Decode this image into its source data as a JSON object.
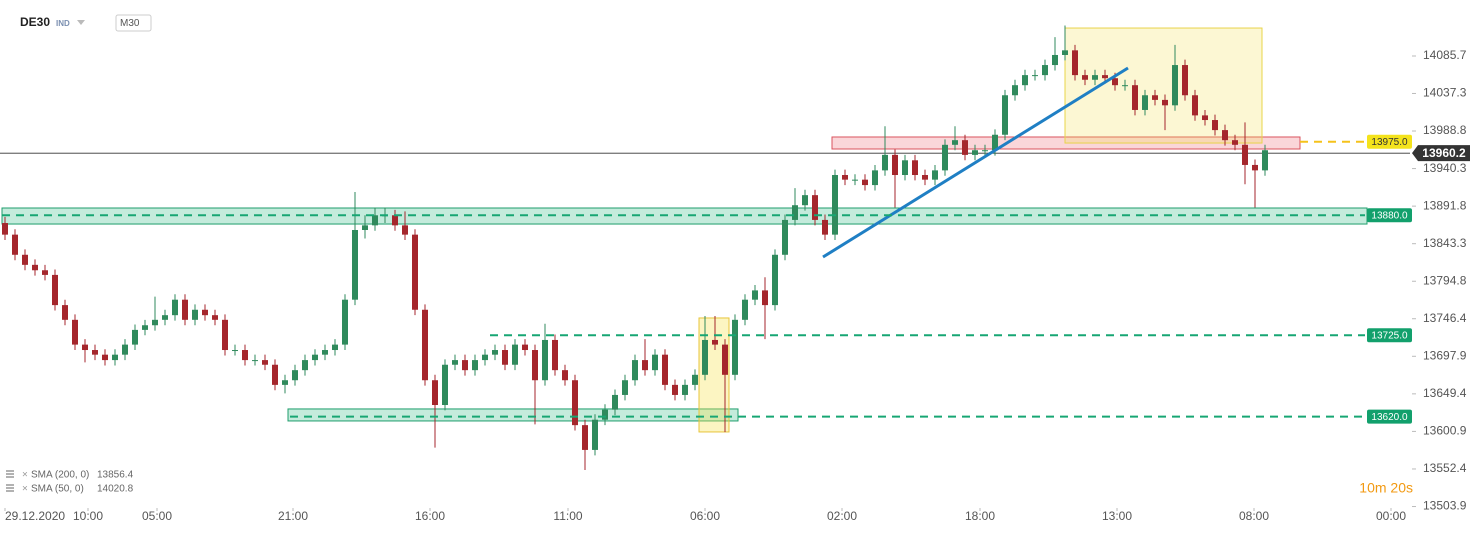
{
  "chart_data": {
    "type": "candlestick",
    "symbol": "DE30",
    "symbol_type": "IND",
    "timeframe": "M30",
    "countdown": "10m 20s",
    "colors": {
      "up": "#2f8a5c",
      "down": "#a5262c"
    },
    "open": [
      13870,
      13855,
      13829,
      13816,
      13809,
      13803,
      13764,
      13745,
      13713,
      13706,
      13700,
      13693,
      13700,
      13713,
      13732,
      13738,
      13745,
      13751,
      13771,
      13745,
      13758,
      13751,
      13745,
      13706,
      13706,
      13693,
      13693,
      13687,
      13661,
      13667,
      13680,
      13693,
      13700,
      13706,
      13713,
      13771,
      13861,
      13867,
      13880,
      13880,
      13867,
      13855,
      13758,
      13667,
      13635,
      13687,
      13693,
      13680,
      13693,
      13700,
      13706,
      13687,
      13713,
      13706,
      13667,
      13719,
      13680,
      13667,
      13609,
      13577,
      13616,
      13629,
      13648,
      13667,
      13693,
      13680,
      13700,
      13661,
      13648,
      13661,
      13674,
      13719,
      13713,
      13674,
      13745,
      13771,
      13783,
      13764,
      13829,
      13874,
      13893,
      13906,
      13874,
      13855,
      13932,
      13926,
      13926,
      13919,
      13938,
      13958,
      13932,
      13951,
      13932,
      13926,
      13938,
      13971,
      13977,
      13958,
      13964,
      13964,
      13984,
      14035,
      14048,
      14061,
      14061,
      14074,
      14087,
      14093,
      14061,
      14055,
      14061,
      14057,
      14048,
      14048,
      14016,
      14035,
      14029,
      14022,
      14074,
      14035,
      14009,
      14003,
      13990,
      13977,
      13971,
      13945,
      13938
    ],
    "high": [
      13878,
      13862,
      13836,
      13823,
      13816,
      13810,
      13771,
      13752,
      13720,
      13713,
      13707,
      13707,
      13720,
      13739,
      13745,
      13775,
      13758,
      13778,
      13778,
      13765,
      13765,
      13758,
      13752,
      13713,
      13713,
      13700,
      13700,
      13694,
      13674,
      13687,
      13700,
      13707,
      13713,
      13720,
      13778,
      13910,
      13880,
      13890,
      13890,
      13887,
      13885,
      13862,
      13765,
      13674,
      13694,
      13700,
      13700,
      13700,
      13707,
      13713,
      13713,
      13720,
      13720,
      13713,
      13740,
      13726,
      13687,
      13674,
      13616,
      13623,
      13636,
      13655,
      13674,
      13700,
      13720,
      13707,
      13707,
      13668,
      13668,
      13681,
      13750,
      13750,
      13720,
      13752,
      13778,
      13790,
      13800,
      13836,
      13881,
      13915,
      13913,
      13913,
      13881,
      13939,
      13939,
      13933,
      13933,
      13945,
      13995,
      13965,
      13958,
      13958,
      13939,
      13945,
      13978,
      13995,
      13984,
      13971,
      13971,
      13991,
      14042,
      14055,
      14068,
      14068,
      14081,
      14110,
      14125,
      14100,
      14068,
      14068,
      14068,
      14064,
      14055,
      14055,
      14042,
      14042,
      14036,
      14100,
      14081,
      14042,
      14016,
      14010,
      13997,
      13984,
      14000,
      13952,
      13971
    ],
    "low": [
      13848,
      13822,
      13809,
      13802,
      13796,
      13757,
      13738,
      13706,
      13690,
      13693,
      13686,
      13686,
      13693,
      13706,
      13725,
      13731,
      13738,
      13744,
      13738,
      13738,
      13744,
      13738,
      13699,
      13699,
      13686,
      13686,
      13680,
      13654,
      13650,
      13660,
      13673,
      13686,
      13693,
      13699,
      13706,
      13764,
      13850,
      13860,
      13870,
      13860,
      13848,
      13751,
      13660,
      13580,
      13628,
      13680,
      13673,
      13673,
      13686,
      13693,
      13680,
      13680,
      13699,
      13610,
      13660,
      13673,
      13660,
      13602,
      13551,
      13570,
      13609,
      13622,
      13641,
      13660,
      13673,
      13673,
      13654,
      13641,
      13641,
      13654,
      13667,
      13706,
      13600,
      13667,
      13738,
      13764,
      13720,
      13757,
      13822,
      13867,
      13886,
      13867,
      13848,
      13848,
      13919,
      13919,
      13912,
      13912,
      13931,
      13890,
      13925,
      13925,
      13919,
      13919,
      13931,
      13964,
      13951,
      13951,
      13957,
      13957,
      13977,
      14028,
      14041,
      14054,
      14054,
      14067,
      14080,
      14054,
      14048,
      14048,
      14050,
      14041,
      14041,
      14009,
      14009,
      14022,
      13990,
      14015,
      14028,
      14002,
      13996,
      13983,
      13970,
      13964,
      13920,
      13890,
      13931
    ],
    "close": [
      13855,
      13829,
      13816,
      13809,
      13803,
      13764,
      13745,
      13713,
      13706,
      13700,
      13693,
      13700,
      13713,
      13732,
      13738,
      13745,
      13751,
      13771,
      13745,
      13758,
      13751,
      13745,
      13706,
      13706,
      13693,
      13693,
      13687,
      13661,
      13667,
      13680,
      13693,
      13700,
      13706,
      13713,
      13771,
      13861,
      13867,
      13880,
      13880,
      13867,
      13855,
      13758,
      13667,
      13635,
      13687,
      13693,
      13680,
      13693,
      13700,
      13706,
      13687,
      13713,
      13706,
      13667,
      13719,
      13680,
      13667,
      13609,
      13577,
      13616,
      13629,
      13648,
      13667,
      13693,
      13680,
      13700,
      13661,
      13648,
      13661,
      13674,
      13719,
      13713,
      13674,
      13745,
      13771,
      13783,
      13764,
      13829,
      13874,
      13893,
      13906,
      13874,
      13855,
      13932,
      13926,
      13926,
      13919,
      13938,
      13958,
      13932,
      13951,
      13932,
      13926,
      13938,
      13971,
      13977,
      13958,
      13964,
      13964,
      13984,
      14035,
      14048,
      14061,
      14061,
      14074,
      14087,
      14093,
      14061,
      14055,
      14061,
      14057,
      14048,
      14048,
      14016,
      14035,
      14029,
      14022,
      14074,
      14035,
      14009,
      14003,
      13990,
      13977,
      13971,
      13945,
      13938,
      13964
    ],
    "xlim": [
      -0.5,
      140.5
    ],
    "xticks": [
      {
        "value": 0,
        "label": "29.12.2020"
      },
      {
        "value": 8.3,
        "label": "10:00"
      },
      {
        "value": 15.2,
        "label": "05:00"
      },
      {
        "value": 28.8,
        "label": "21:00"
      },
      {
        "value": 42.5,
        "label": "16:00"
      },
      {
        "value": 56.3,
        "label": "11:00"
      },
      {
        "value": 70,
        "label": "06:00"
      },
      {
        "value": 83.7,
        "label": "02:00"
      },
      {
        "value": 97.5,
        "label": "18:00"
      },
      {
        "value": 111.2,
        "label": "13:00"
      },
      {
        "value": 124.9,
        "label": "08:00"
      },
      {
        "value": 138.6,
        "label": "00:00"
      }
    ],
    "ylim": [
      13502,
      14158
    ],
    "yticks": [
      14085.7,
      14037.3,
      13988.8,
      13940.3,
      13891.8,
      13843.3,
      13794.8,
      13746.4,
      13697.9,
      13649.4,
      13600.9,
      13552.4,
      13503.9
    ],
    "current_price": {
      "value": 13960.2,
      "color": "#333333"
    },
    "levels": [
      {
        "value": 13880,
        "label": "13880.0",
        "from": -0.3,
        "color": "#17a673",
        "label_fill": "#12a06c",
        "label_text": "#ffffff"
      },
      {
        "value": 13725,
        "label": "13725.0",
        "from": 48.5,
        "color": "#17a673",
        "label_fill": "#12a06c",
        "label_text": "#ffffff"
      },
      {
        "value": 13620,
        "label": "13620.0",
        "from": 28.5,
        "color": "#17a673",
        "label_fill": "#12a06c",
        "label_text": "#ffffff"
      },
      {
        "value": 13975,
        "label": "13975.0",
        "from": 129.5,
        "color": "#f5c21b",
        "label_fill": "#f4e31c",
        "label_text": "#333333"
      }
    ],
    "zones": [
      {
        "xlim": [
          -0.3,
          136.2
        ],
        "ylim": [
          13868.7,
          13889.4
        ],
        "fill": "rgba(60,190,140,0.3)",
        "stroke": "#1f9e6c"
      },
      {
        "xlim": [
          28.3,
          73.3
        ],
        "ylim": [
          13614.4,
          13629.9
        ],
        "fill": "rgba(60,190,140,0.3)",
        "stroke": "#1f9e6c"
      },
      {
        "xlim": [
          82.7,
          129.5
        ],
        "ylim": [
          13965.6,
          13981.1
        ],
        "fill": "rgba(240,120,130,0.3)",
        "stroke": "#d9535e"
      },
      {
        "xlim": [
          106,
          125.7
        ],
        "ylim": [
          13973.3,
          14121.8
        ],
        "fill": "rgba(245,225,80,0.25)",
        "stroke": "#e8d44a"
      },
      {
        "xlim": [
          69.4,
          72.4
        ],
        "ylim": [
          13600.2,
          13747.4
        ],
        "fill": "rgba(245,225,80,0.35)",
        "stroke": "#e8c53a"
      }
    ],
    "trendlines": [
      {
        "x": [
          81.8,
          112.3
        ],
        "y": [
          13826.1,
          14070.2
        ],
        "color": "#1f7fc4"
      }
    ],
    "indicators": [
      {
        "name": "SMA (200, 0)",
        "value": 13856.4
      },
      {
        "name": "SMA (50, 0)",
        "value": 14020.8
      }
    ]
  }
}
